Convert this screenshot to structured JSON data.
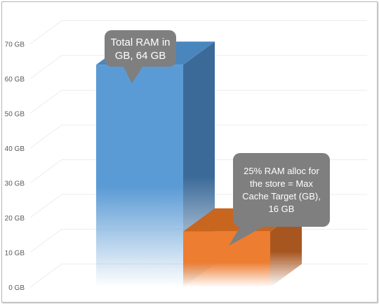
{
  "chart_data": {
    "type": "bar",
    "categories": [
      "",
      ""
    ],
    "values": [
      64,
      16
    ],
    "ylim": [
      0,
      70
    ],
    "yticks": [
      "0 GB",
      "10 GB",
      "20 GB",
      "30 GB",
      "40 GB",
      "50 GB",
      "60 GB",
      "70 GB"
    ],
    "grid": true,
    "colors": [
      "#5b9bd5",
      "#ed7d31"
    ],
    "annotations": [
      "Total RAM in GB, 64 GB",
      "25% RAM alloc for the store = Max Cache Target (GB), 16 GB"
    ]
  },
  "callouts": [
    {
      "lines": [
        "Total RAM in",
        "GB, 64 GB"
      ]
    },
    {
      "lines": [
        "25% RAM alloc for",
        "the store = Max",
        "Cache Target (GB),",
        "16 GB"
      ]
    }
  ]
}
